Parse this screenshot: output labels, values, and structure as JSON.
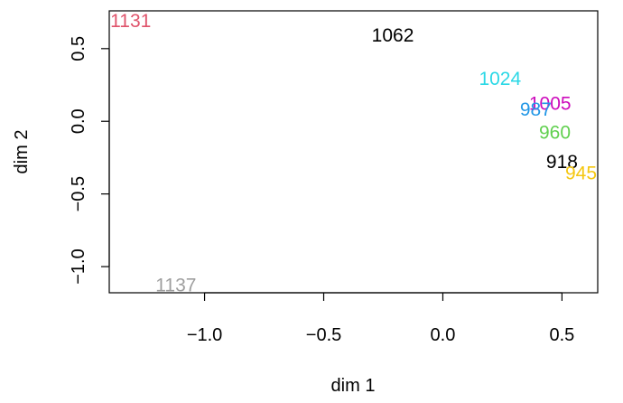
{
  "chart_data": {
    "type": "scatter",
    "xlabel": "dim 1",
    "ylabel": "dim 2",
    "xlim": [
      -1.4,
      0.65
    ],
    "ylim": [
      -1.18,
      0.76
    ],
    "x_ticks": [
      {
        "value": -1.0,
        "label": "−1.0"
      },
      {
        "value": -0.5,
        "label": "−0.5"
      },
      {
        "value": 0.0,
        "label": "0.0"
      },
      {
        "value": 0.5,
        "label": "0.5"
      }
    ],
    "y_ticks": [
      {
        "value": -1.0,
        "label": "−1.0"
      },
      {
        "value": -0.5,
        "label": "−0.5"
      },
      {
        "value": 0.0,
        "label": "0.0"
      },
      {
        "value": 0.5,
        "label": "0.5"
      }
    ],
    "points": [
      {
        "label": "1131",
        "x": -1.31,
        "y": 0.69,
        "color": "#DF536B"
      },
      {
        "label": "1062",
        "x": -0.21,
        "y": 0.59,
        "color": "#000000"
      },
      {
        "label": "1024",
        "x": 0.24,
        "y": 0.29,
        "color": "#2BD8E6"
      },
      {
        "label": "1005",
        "x": 0.45,
        "y": 0.12,
        "color": "#CD0BBC"
      },
      {
        "label": "987",
        "x": 0.39,
        "y": 0.08,
        "color": "#2297E6"
      },
      {
        "label": "960",
        "x": 0.47,
        "y": -0.08,
        "color": "#61D04F"
      },
      {
        "label": "918",
        "x": 0.5,
        "y": -0.28,
        "color": "#000000"
      },
      {
        "label": "945",
        "x": 0.58,
        "y": -0.36,
        "color": "#F5C710"
      },
      {
        "label": "1137",
        "x": -1.12,
        "y": -1.13,
        "color": "#9E9E9E"
      }
    ]
  }
}
